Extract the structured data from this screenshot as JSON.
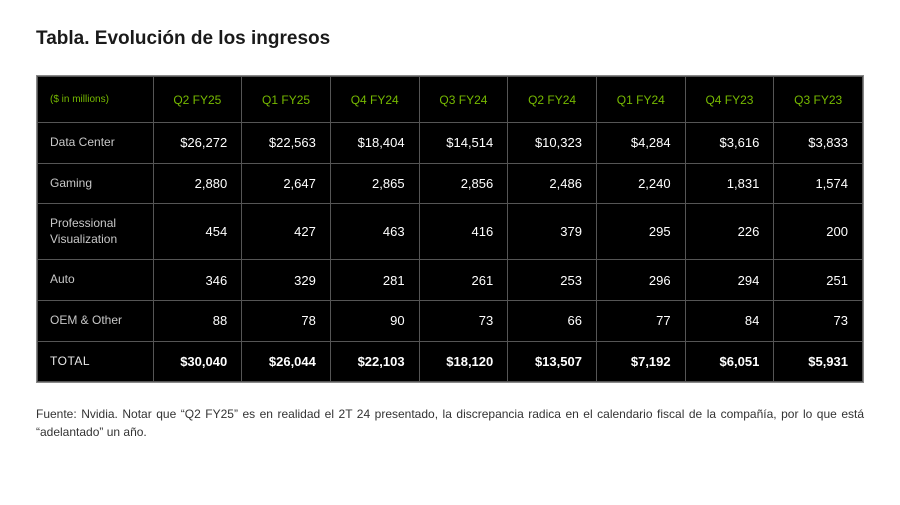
{
  "title": "Tabla. Evolución de los ingresos",
  "table": {
    "unitsLabel": "($ in millions)",
    "headerColor": "#76b900",
    "bgColor": "#000000",
    "borderColor": "#555555",
    "rowHeadColor": "#c8c8c8",
    "valueColor": "#ffffff",
    "columns": [
      "Q2 FY25",
      "Q1 FY25",
      "Q4 FY24",
      "Q3 FY24",
      "Q2 FY24",
      "Q1 FY24",
      "Q4 FY23",
      "Q3 FY23"
    ],
    "rows": [
      {
        "label": "Data Center",
        "values": [
          "$26,272",
          "$22,563",
          "$18,404",
          "$14,514",
          "$10,323",
          "$4,284",
          "$3,616",
          "$3,833"
        ]
      },
      {
        "label": "Gaming",
        "values": [
          "2,880",
          "2,647",
          "2,865",
          "2,856",
          "2,486",
          "2,240",
          "1,831",
          "1,574"
        ]
      },
      {
        "label": "Professional Visualization",
        "values": [
          "454",
          "427",
          "463",
          "416",
          "379",
          "295",
          "226",
          "200"
        ]
      },
      {
        "label": "Auto",
        "values": [
          "346",
          "329",
          "281",
          "261",
          "253",
          "296",
          "294",
          "251"
        ]
      },
      {
        "label": "OEM & Other",
        "values": [
          "88",
          "78",
          "90",
          "73",
          "66",
          "77",
          "84",
          "73"
        ]
      }
    ],
    "total": {
      "label": "TOTAL",
      "values": [
        "$30,040",
        "$26,044",
        "$22,103",
        "$18,120",
        "$13,507",
        "$7,192",
        "$6,051",
        "$5,931"
      ]
    }
  },
  "footnote": "Fuente: Nvidia. Notar que “Q2 FY25” es en realidad el 2T 24 presentado, la discrepancia radica en el calendario fiscal de la compañía, por lo que está “adelantado” un año."
}
